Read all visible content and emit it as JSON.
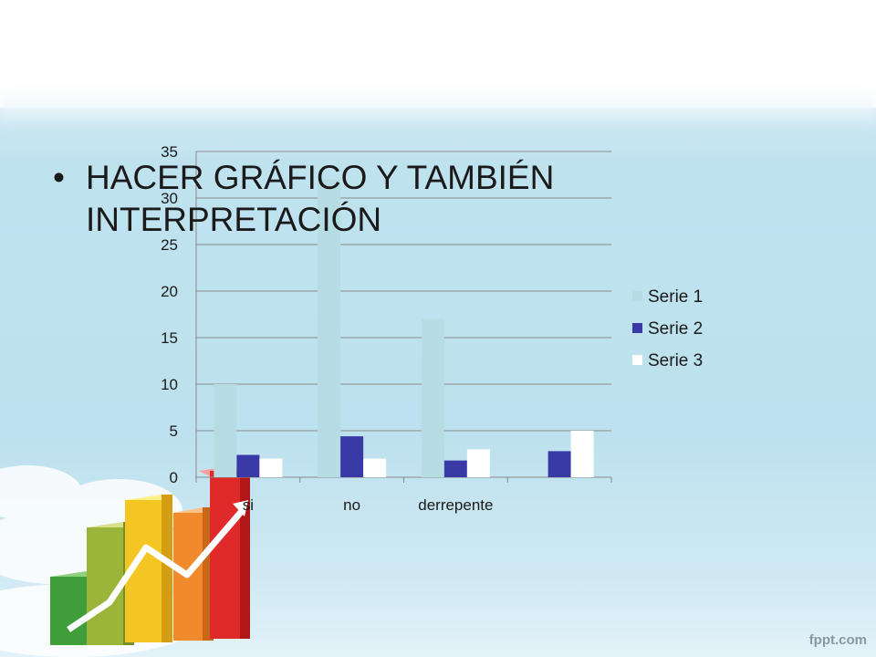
{
  "slide": {
    "title_line1": "HACER GRÁFICO Y TAMBIÉN",
    "title_line2": "INTERPRETACIÓN",
    "bullet": "•",
    "watermark": "fppt.com"
  },
  "chart_data": {
    "type": "bar",
    "categories": [
      "si",
      "no",
      "derrepente",
      ""
    ],
    "series": [
      {
        "name": "Serie 1",
        "values": [
          10,
          32,
          17,
          0
        ],
        "color": "#b6dde3"
      },
      {
        "name": "Serie 2",
        "values": [
          2.4,
          4.4,
          1.8,
          2.8
        ],
        "color": "#3a3aa6"
      },
      {
        "name": "Serie 3",
        "values": [
          2,
          2,
          3,
          5
        ],
        "color": "#ffffff"
      }
    ],
    "ylim": [
      0,
      35
    ],
    "yticks": [
      0,
      5,
      10,
      15,
      20,
      25,
      30,
      35
    ],
    "grid": true,
    "legend": "right"
  },
  "colors": {
    "gridline": "#8a8a8a",
    "axis_text": "#1a1a1a"
  }
}
